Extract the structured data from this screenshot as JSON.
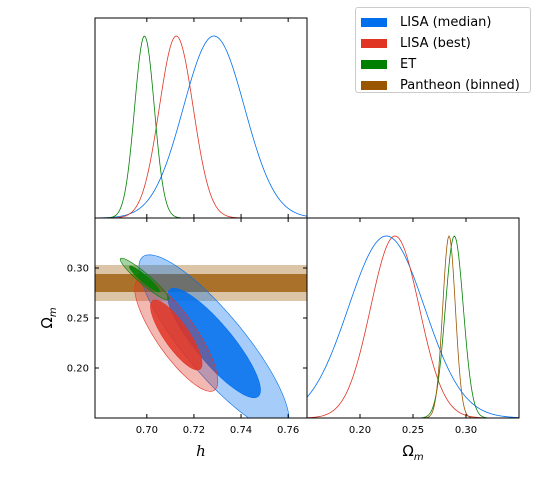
{
  "chart_data": {
    "type": "corner",
    "parameters": [
      {
        "key": "h",
        "label": "h",
        "range": [
          0.678,
          0.768
        ],
        "ticks": [
          "0.70",
          "0.72",
          "0.74",
          "0.76"
        ],
        "tick_values": [
          0.7,
          0.72,
          0.74,
          0.76
        ]
      },
      {
        "key": "om",
        "label": "Ω_m",
        "range": [
          0.15,
          0.35
        ],
        "ticks": [
          "0.20",
          "0.25",
          "0.30"
        ],
        "tick_values": [
          0.2,
          0.25,
          0.3
        ]
      }
    ],
    "series": [
      {
        "name": "LISA (median)",
        "color": "#006FED",
        "h": {
          "mean": 0.7285,
          "sigma": 0.013
        },
        "om": {
          "mean": 0.225,
          "sigma": 0.036
        },
        "corr": -0.86
      },
      {
        "name": "LISA (best)",
        "color": "#E03424",
        "h": {
          "mean": 0.7125,
          "sigma": 0.0072
        },
        "om": {
          "mean": 0.233,
          "sigma": 0.023
        },
        "corr": -0.82
      },
      {
        "name": "ET",
        "color": "#008000",
        "h": {
          "mean": 0.699,
          "sigma": 0.0042
        },
        "om": {
          "mean": 0.289,
          "sigma": 0.0085
        },
        "corr": -0.94
      },
      {
        "name": "Pantheon (binned)",
        "color": "#9A5500",
        "h": null,
        "om": {
          "mean": 0.285,
          "sigma": 0.009,
          "samples_marginal": [
            0.282,
            0.288
          ]
        },
        "band_1sigma": [
          0.276,
          0.294
        ],
        "band_2sigma": [
          0.267,
          0.303
        ]
      }
    ],
    "legend_position": "top-right",
    "grid": false
  }
}
